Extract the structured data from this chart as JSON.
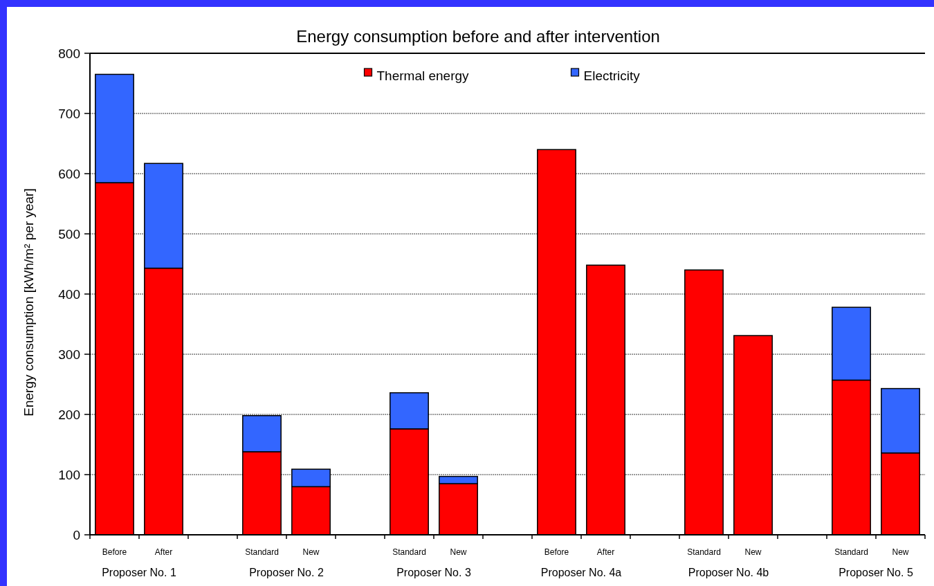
{
  "chart_data": {
    "type": "bar",
    "title": "Energy consumption before and after intervention",
    "ylabel": "Energy consumption [kWh/m² per year]",
    "categories": [
      "Before",
      "After",
      null,
      "Standard",
      "New",
      null,
      "Standard",
      "New",
      null,
      "Before",
      "After",
      null,
      "Standard",
      "New",
      null,
      "Standard",
      "New"
    ],
    "annotations": [
      "Proposer No. 1",
      "Proposer No. 2",
      "Proposer No. 3",
      "Proposer No. 4a",
      "Proposer No. 4b",
      "Proposer No. 5"
    ],
    "series": [
      {
        "name": "Thermal energy",
        "color": "#ff0000",
        "values": [
          585,
          443,
          null,
          138,
          80,
          null,
          176,
          85,
          null,
          640,
          448,
          null,
          440,
          331,
          null,
          257,
          136
        ]
      },
      {
        "name": "Electricity",
        "color": "#3366ff",
        "values": [
          180,
          174,
          null,
          60,
          29,
          null,
          60,
          12,
          null,
          null,
          null,
          null,
          null,
          null,
          null,
          121,
          107
        ]
      }
    ],
    "stacked": true,
    "ylim": [
      0,
      800
    ],
    "yticks": [
      0,
      100,
      200,
      300,
      400,
      500,
      600,
      700,
      800
    ],
    "grid": "y",
    "legend": "top"
  }
}
